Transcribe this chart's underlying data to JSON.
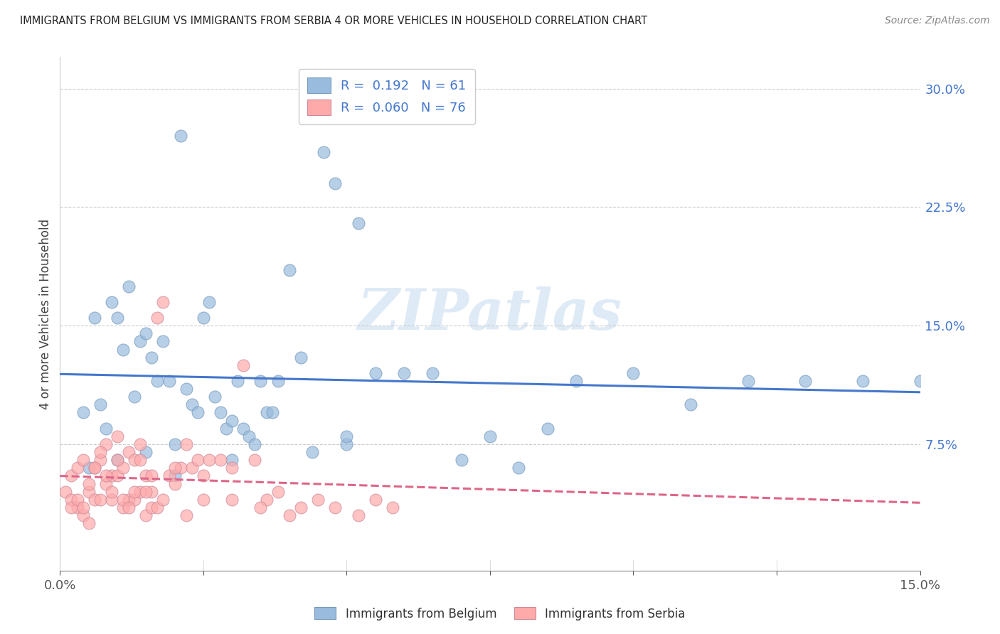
{
  "title": "IMMIGRANTS FROM BELGIUM VS IMMIGRANTS FROM SERBIA 4 OR MORE VEHICLES IN HOUSEHOLD CORRELATION CHART",
  "source": "Source: ZipAtlas.com",
  "ylabel": "4 or more Vehicles in Household",
  "belgium_label": "Immigrants from Belgium",
  "serbia_label": "Immigrants from Serbia",
  "belgium_R": "0.192",
  "belgium_N": "61",
  "serbia_R": "0.060",
  "serbia_N": "76",
  "belgium_color": "#99BBDD",
  "serbia_color": "#FFAAAA",
  "belgium_line_color": "#4477CC",
  "serbia_line_color": "#DD6688",
  "watermark": "ZIPatlas",
  "xlim": [
    0.0,
    0.15
  ],
  "ylim": [
    -0.005,
    0.32
  ],
  "xticks": [
    0.0,
    0.025,
    0.05,
    0.075,
    0.1,
    0.125,
    0.15
  ],
  "yticks": [
    0.075,
    0.15,
    0.225,
    0.3
  ],
  "belgium_x": [
    0.004,
    0.006,
    0.007,
    0.008,
    0.009,
    0.01,
    0.011,
    0.012,
    0.013,
    0.014,
    0.015,
    0.016,
    0.017,
    0.018,
    0.019,
    0.02,
    0.021,
    0.022,
    0.023,
    0.024,
    0.025,
    0.026,
    0.027,
    0.028,
    0.029,
    0.03,
    0.031,
    0.032,
    0.033,
    0.034,
    0.035,
    0.036,
    0.037,
    0.038,
    0.04,
    0.042,
    0.044,
    0.046,
    0.048,
    0.05,
    0.052,
    0.055,
    0.06,
    0.065,
    0.07,
    0.075,
    0.08,
    0.085,
    0.09,
    0.1,
    0.11,
    0.12,
    0.13,
    0.14,
    0.15,
    0.005,
    0.01,
    0.015,
    0.02,
    0.03,
    0.05
  ],
  "belgium_y": [
    0.095,
    0.155,
    0.1,
    0.085,
    0.165,
    0.155,
    0.135,
    0.175,
    0.105,
    0.14,
    0.145,
    0.13,
    0.115,
    0.14,
    0.115,
    0.075,
    0.27,
    0.11,
    0.1,
    0.095,
    0.155,
    0.165,
    0.105,
    0.095,
    0.085,
    0.09,
    0.115,
    0.085,
    0.08,
    0.075,
    0.115,
    0.095,
    0.095,
    0.115,
    0.185,
    0.13,
    0.07,
    0.26,
    0.24,
    0.075,
    0.215,
    0.12,
    0.12,
    0.12,
    0.065,
    0.08,
    0.06,
    0.085,
    0.115,
    0.12,
    0.1,
    0.115,
    0.115,
    0.115,
    0.115,
    0.06,
    0.065,
    0.07,
    0.055,
    0.065,
    0.08
  ],
  "serbia_x": [
    0.001,
    0.002,
    0.002,
    0.003,
    0.003,
    0.004,
    0.004,
    0.005,
    0.005,
    0.006,
    0.006,
    0.007,
    0.007,
    0.008,
    0.008,
    0.009,
    0.009,
    0.01,
    0.01,
    0.011,
    0.011,
    0.012,
    0.012,
    0.013,
    0.013,
    0.014,
    0.014,
    0.015,
    0.015,
    0.016,
    0.016,
    0.017,
    0.018,
    0.019,
    0.02,
    0.021,
    0.022,
    0.023,
    0.024,
    0.025,
    0.026,
    0.028,
    0.03,
    0.032,
    0.034,
    0.036,
    0.038,
    0.04,
    0.042,
    0.045,
    0.048,
    0.052,
    0.055,
    0.058,
    0.002,
    0.003,
    0.004,
    0.005,
    0.006,
    0.007,
    0.008,
    0.009,
    0.01,
    0.011,
    0.012,
    0.013,
    0.014,
    0.015,
    0.016,
    0.017,
    0.018,
    0.02,
    0.022,
    0.025,
    0.03,
    0.035
  ],
  "serbia_y": [
    0.045,
    0.04,
    0.055,
    0.035,
    0.06,
    0.03,
    0.065,
    0.025,
    0.045,
    0.06,
    0.04,
    0.065,
    0.04,
    0.075,
    0.05,
    0.055,
    0.04,
    0.08,
    0.055,
    0.035,
    0.06,
    0.04,
    0.07,
    0.04,
    0.065,
    0.045,
    0.075,
    0.03,
    0.055,
    0.045,
    0.035,
    0.155,
    0.165,
    0.055,
    0.05,
    0.06,
    0.075,
    0.06,
    0.065,
    0.04,
    0.065,
    0.065,
    0.06,
    0.125,
    0.065,
    0.04,
    0.045,
    0.03,
    0.035,
    0.04,
    0.035,
    0.03,
    0.04,
    0.035,
    0.035,
    0.04,
    0.035,
    0.05,
    0.06,
    0.07,
    0.055,
    0.045,
    0.065,
    0.04,
    0.035,
    0.045,
    0.065,
    0.045,
    0.055,
    0.035,
    0.04,
    0.06,
    0.03,
    0.055,
    0.04,
    0.035
  ]
}
